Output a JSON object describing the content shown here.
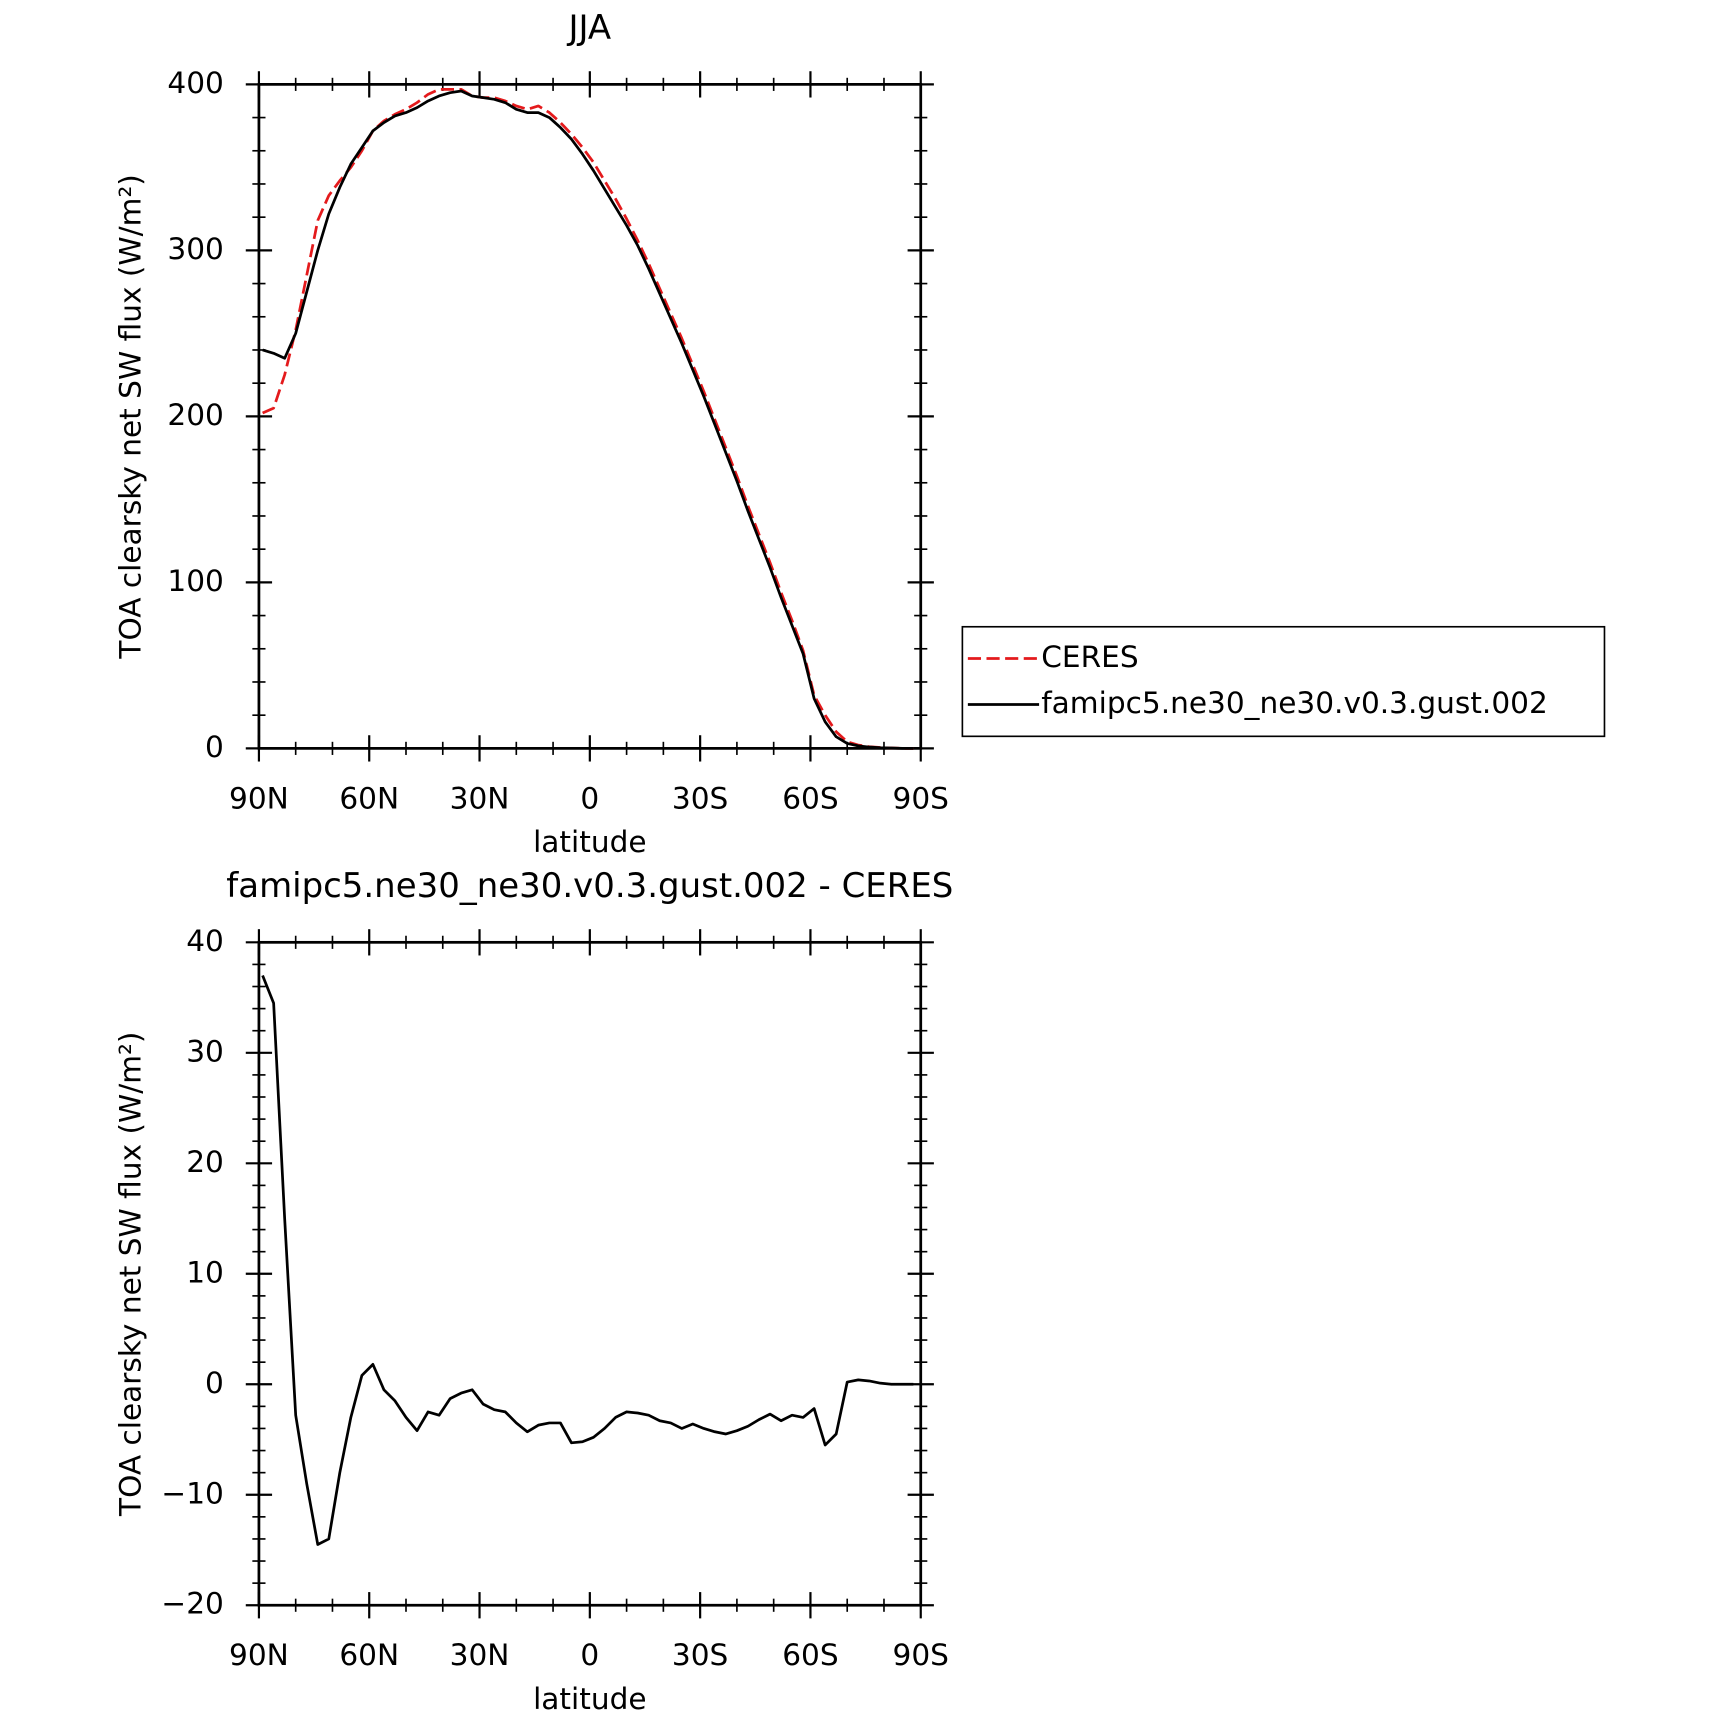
{
  "chart_data": [
    {
      "type": "line",
      "title": "JJA",
      "xlabel": "latitude",
      "ylabel": "TOA clearsky net SW flux (W/m²)",
      "x": [
        89,
        86,
        83,
        80,
        77,
        74,
        71,
        68,
        65,
        62,
        59,
        56,
        53,
        50,
        47,
        44,
        41,
        38,
        35,
        32,
        29,
        26,
        23,
        20,
        17,
        14,
        11,
        8,
        5,
        2,
        -1,
        -4,
        -7,
        -10,
        -13,
        -16,
        -19,
        -22,
        -25,
        -28,
        -31,
        -34,
        -37,
        -40,
        -43,
        -46,
        -49,
        -52,
        -55,
        -58,
        -61,
        -64,
        -67,
        -70,
        -73,
        -76,
        -79,
        -82,
        -85,
        -88
      ],
      "series": [
        {
          "name": "CERES",
          "color": "#e41a1c",
          "dash": true,
          "values": [
            202,
            205,
            225,
            252,
            285,
            318,
            333,
            342,
            350,
            360,
            372,
            378,
            382,
            385,
            389,
            394,
            397,
            397,
            397,
            393,
            392,
            392,
            390,
            387,
            385,
            387,
            383,
            377,
            370,
            362,
            353,
            342,
            331,
            319,
            306,
            292,
            277,
            262,
            247,
            231,
            215,
            198,
            181,
            164,
            146,
            129,
            112,
            94,
            77,
            59,
            32,
            20,
            10,
            4,
            2,
            1,
            0.5,
            0.2,
            0,
            0
          ]
        },
        {
          "name": "famipc5.ne30_ne30.v0.3.gust.002",
          "color": "#000000",
          "dash": false,
          "values": [
            240,
            238,
            235,
            250,
            275,
            300,
            322,
            338,
            352,
            362,
            372,
            377,
            381,
            383,
            386,
            390,
            393,
            395,
            396,
            393,
            392,
            391,
            389,
            385,
            383,
            383,
            380,
            374,
            367,
            358,
            348,
            337,
            326,
            315,
            303,
            289,
            274,
            259,
            244,
            228,
            212,
            195,
            178,
            161,
            143,
            126,
            109,
            91,
            74,
            57,
            30,
            16,
            7,
            3,
            1.5,
            0.8,
            0.4,
            0.2,
            0,
            0
          ]
        }
      ],
      "xlim": [
        90,
        -90
      ],
      "xticks": [
        {
          "value": 90,
          "label": "90N"
        },
        {
          "value": 60,
          "label": "60N"
        },
        {
          "value": 30,
          "label": "30N"
        },
        0,
        {
          "value": -30,
          "label": "30S"
        },
        {
          "value": -60,
          "label": "60S"
        },
        {
          "value": -90,
          "label": "90S"
        }
      ],
      "ylim": [
        0,
        400
      ],
      "yticks": [
        0,
        100,
        200,
        300,
        400
      ],
      "legend": "right"
    },
    {
      "type": "line",
      "title": "famipc5.ne30_ne30.v0.3.gust.002 - CERES",
      "xlabel": "latitude",
      "ylabel": "TOA clearsky net SW flux (W/m²)",
      "x": [
        89,
        86,
        83,
        80,
        77,
        74,
        71,
        68,
        65,
        62,
        59,
        56,
        53,
        50,
        47,
        44,
        41,
        38,
        35,
        32,
        29,
        26,
        23,
        20,
        17,
        14,
        11,
        8,
        5,
        2,
        -1,
        -4,
        -7,
        -10,
        -13,
        -16,
        -19,
        -22,
        -25,
        -28,
        -31,
        -34,
        -37,
        -40,
        -43,
        -46,
        -49,
        -52,
        -55,
        -58,
        -61,
        -64,
        -67,
        -70,
        -73,
        -76,
        -79,
        -82,
        -85,
        -88
      ],
      "series": [
        {
          "color": "#000000",
          "dash": false,
          "values": [
            37,
            34.5,
            15,
            -2.8,
            -9,
            -14.5,
            -14,
            -8,
            -3,
            0.8,
            1.8,
            -0.5,
            -1.5,
            -3,
            -4.2,
            -2.5,
            -2.8,
            -1.3,
            -0.8,
            -0.5,
            -1.8,
            -2.3,
            -2.5,
            -3.5,
            -4.3,
            -3.7,
            -3.5,
            -3.5,
            -5.3,
            -5.2,
            -4.8,
            -4,
            -3,
            -2.5,
            -2.6,
            -2.8,
            -3.3,
            -3.5,
            -4,
            -3.6,
            -4,
            -4.3,
            -4.5,
            -4.2,
            -3.8,
            -3.2,
            -2.7,
            -3.3,
            -2.8,
            -3,
            -2.2,
            -5.5,
            -4.5,
            0.2,
            0.4,
            0.3,
            0.1,
            0,
            0,
            0
          ]
        }
      ],
      "xlim": [
        90,
        -90
      ],
      "xticks": [
        {
          "value": 90,
          "label": "90N"
        },
        {
          "value": 60,
          "label": "60N"
        },
        {
          "value": 30,
          "label": "30N"
        },
        0,
        {
          "value": -30,
          "label": "30S"
        },
        {
          "value": -60,
          "label": "60S"
        },
        {
          "value": -90,
          "label": "90S"
        }
      ],
      "ylim": [
        -20,
        40
      ],
      "yticks": [
        {
          "value": -20,
          "label": "−20"
        },
        {
          "value": -10,
          "label": "−10"
        },
        0,
        10,
        20,
        30,
        40
      ]
    }
  ]
}
